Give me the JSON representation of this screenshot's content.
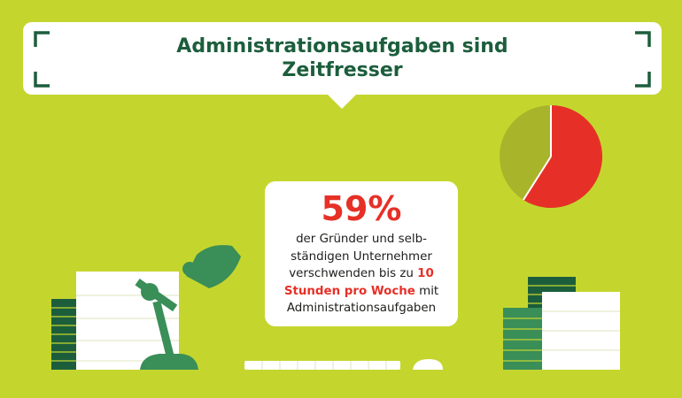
{
  "title": {
    "line1": "Administrationsaufgaben sind",
    "line2": "Zeitfresser"
  },
  "statistic": {
    "percent_label": "59%",
    "line1": "der Gründer und selb-",
    "line2": "ständigen Unternehmer",
    "line3_before": "verschwenden bis zu ",
    "line3_highlight": "10",
    "line4_highlight": "Stunden pro Woche",
    "line4_after": " mit",
    "line5": "Administrationsaufgaben"
  },
  "pie_chart": {
    "highlighted_share_percent": 59,
    "remainder_share_percent": 41,
    "highlight_color": "#e63027",
    "remainder_color": "#a8b52a"
  },
  "colors": {
    "background": "#c4d62e",
    "accent_green": "#1c5e3c",
    "accent_red": "#e63027",
    "panel": "#ffffff"
  },
  "icons": [
    "frame-corner-icon",
    "desk-lamp-icon",
    "paper-stack-icon",
    "binder-stack-icon",
    "keyboard-icon",
    "mouse-icon"
  ]
}
